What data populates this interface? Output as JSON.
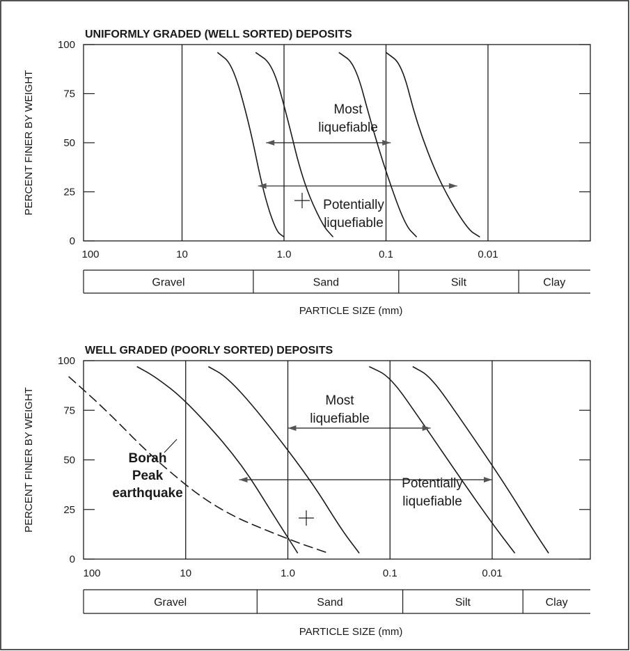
{
  "chart_data": [
    {
      "type": "line",
      "title": "UNIFORMLY GRADED (WELL SORTED) DEPOSITS",
      "xlabel": "PARTICLE SIZE  (mm)",
      "ylabel": "PERCENT FINER BY WEIGHT",
      "x_scale": "log",
      "x_reversed": true,
      "xlim": [
        100,
        0.001
      ],
      "ylim": [
        0,
        100
      ],
      "x_ticks": [
        {
          "value": 100,
          "label": "100"
        },
        {
          "value": 10,
          "label": "10"
        },
        {
          "value": 1,
          "label": "1.0"
        },
        {
          "value": 0.1,
          "label": "0.1"
        },
        {
          "value": 0.01,
          "label": "0.01"
        }
      ],
      "y_ticks": [
        0,
        25,
        50,
        75,
        100
      ],
      "grid": "vertical lines at decades",
      "series": [
        {
          "style": "solid",
          "points": [
            [
              4.5,
              96
            ],
            [
              3.2,
              90
            ],
            [
              2.2,
              60
            ],
            [
              1.6,
              25
            ],
            [
              1.2,
              5
            ],
            [
              1.0,
              2
            ]
          ]
        },
        {
          "style": "solid",
          "points": [
            [
              1.9,
              96
            ],
            [
              1.3,
              90
            ],
            [
              0.95,
              65
            ],
            [
              0.65,
              30
            ],
            [
              0.42,
              8
            ],
            [
              0.33,
              2
            ]
          ]
        },
        {
          "style": "solid",
          "points": [
            [
              0.29,
              96
            ],
            [
              0.2,
              90
            ],
            [
              0.14,
              60
            ],
            [
              0.1,
              35
            ],
            [
              0.065,
              8
            ],
            [
              0.05,
              2
            ]
          ]
        },
        {
          "style": "solid",
          "points": [
            [
              0.1,
              96
            ],
            [
              0.07,
              90
            ],
            [
              0.05,
              60
            ],
            [
              0.03,
              30
            ],
            [
              0.016,
              6
            ],
            [
              0.012,
              2
            ]
          ]
        }
      ],
      "annotations": [
        {
          "text_lines": [
            "Most",
            "liquefiable"
          ],
          "arrow_range": [
            1.5,
            0.09
          ],
          "arrow_y": 50
        },
        {
          "text_lines": [
            "Potentially",
            "liquefiable"
          ],
          "arrow_range": [
            1.8,
            0.02
          ],
          "arrow_y": 28
        }
      ],
      "size_bands": [
        {
          "label": "Gravel",
          "range": [
            100,
            2
          ]
        },
        {
          "label": "Sand",
          "range": [
            2,
            0.075
          ]
        },
        {
          "label": "Silt",
          "range": [
            0.075,
            0.005
          ]
        },
        {
          "label": "Clay",
          "range": [
            0.005,
            0.001
          ]
        }
      ]
    },
    {
      "type": "line",
      "title": "WELL GRADED (POORLY SORTED) DEPOSITS",
      "xlabel": "PARTICLE SIZE  (mm)",
      "ylabel": "PERCENT FINER BY WEIGHT",
      "x_scale": "log",
      "x_reversed": true,
      "xlim": [
        100,
        0.001
      ],
      "ylim": [
        0,
        100
      ],
      "x_ticks": [
        {
          "value": 100,
          "label": "100"
        },
        {
          "value": 10,
          "label": "10"
        },
        {
          "value": 1,
          "label": "1.0"
        },
        {
          "value": 0.1,
          "label": "0.1"
        },
        {
          "value": 0.01,
          "label": "0.01"
        }
      ],
      "y_ticks": [
        0,
        25,
        50,
        75,
        100
      ],
      "grid": "vertical lines at decades",
      "series": [
        {
          "style": "solid",
          "points": [
            [
              30,
              97
            ],
            [
              20,
              92
            ],
            [
              10,
              80
            ],
            [
              3,
              50
            ],
            [
              1.3,
              20
            ],
            [
              0.8,
              3
            ]
          ]
        },
        {
          "style": "solid",
          "points": [
            [
              6,
              97
            ],
            [
              4,
              92
            ],
            [
              2,
              75
            ],
            [
              0.6,
              40
            ],
            [
              0.3,
              15
            ],
            [
              0.2,
              3
            ]
          ]
        },
        {
          "style": "solid",
          "points": [
            [
              0.16,
              97
            ],
            [
              0.1,
              92
            ],
            [
              0.05,
              70
            ],
            [
              0.02,
              40
            ],
            [
              0.01,
              18
            ],
            [
              0.006,
              3
            ]
          ]
        },
        {
          "style": "solid",
          "points": [
            [
              0.06,
              97
            ],
            [
              0.04,
              92
            ],
            [
              0.02,
              70
            ],
            [
              0.008,
              40
            ],
            [
              0.004,
              15
            ],
            [
              0.0028,
              3
            ]
          ]
        },
        {
          "name": "Borah Peak earthquake",
          "style": "dashed",
          "points": [
            [
              140,
              92
            ],
            [
              60,
              75
            ],
            [
              20,
              50
            ],
            [
              5,
              25
            ],
            [
              1,
              10
            ],
            [
              0.4,
              3
            ]
          ]
        }
      ],
      "annotations": [
        {
          "text_lines": [
            "Most",
            "liquefiable"
          ],
          "arrow_range": [
            1.0,
            0.04
          ],
          "arrow_y": 66
        },
        {
          "text_lines": [
            "Potentially",
            "liquefiable"
          ],
          "arrow_range": [
            3.0,
            0.01
          ],
          "arrow_y": 40
        },
        {
          "text_lines": [
            "Borah",
            "Peak",
            "earthquake"
          ],
          "points_to": [
            15,
            45
          ]
        }
      ],
      "size_bands": [
        {
          "label": "Gravel",
          "range": [
            100,
            2
          ]
        },
        {
          "label": "Sand",
          "range": [
            2,
            0.075
          ]
        },
        {
          "label": "Silt",
          "range": [
            0.075,
            0.005
          ]
        },
        {
          "label": "Clay",
          "range": [
            0.005,
            0.001
          ]
        }
      ]
    }
  ]
}
